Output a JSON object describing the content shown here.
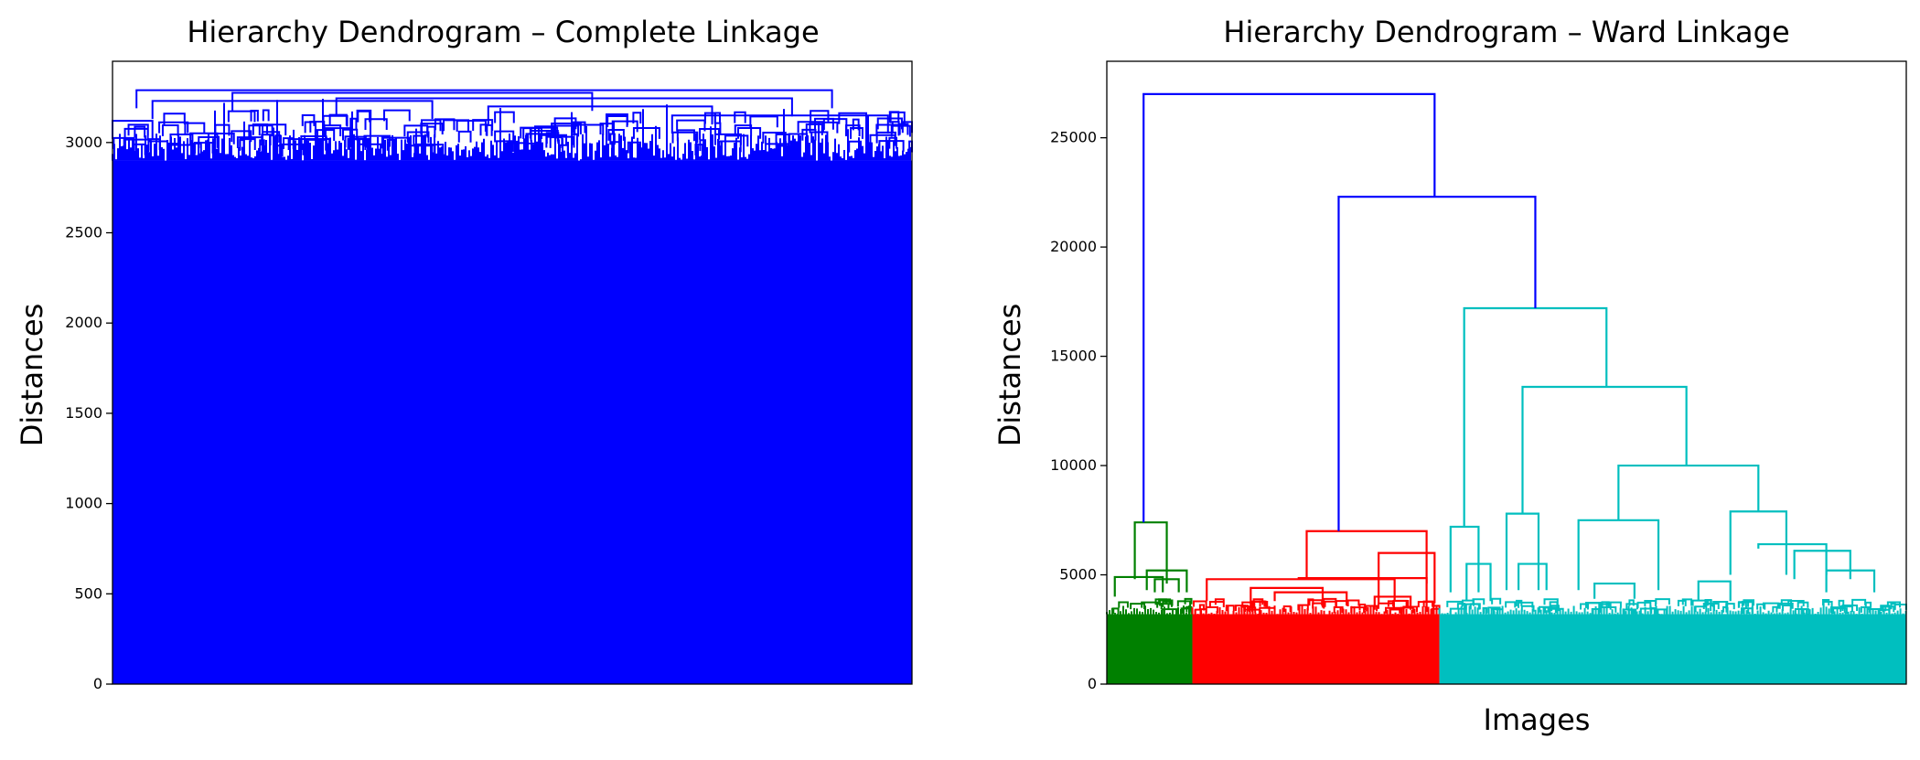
{
  "chart_data": [
    {
      "type": "dendrogram",
      "title": "Hierarchy Dendrogram – Complete Linkage",
      "xlabel": "",
      "ylabel": "Distances",
      "ylim": [
        0,
        3450
      ],
      "yticks": [
        0,
        500,
        1000,
        1500,
        2000,
        2500,
        3000
      ],
      "grid": false,
      "series": [
        {
          "color": "#0000ff",
          "values": []
        }
      ],
      "merges": [
        {
          "height": 3290,
          "color": "#0000ff"
        },
        {
          "height": 3275,
          "color": "#0000ff"
        },
        {
          "height": 3245,
          "color": "#0000ff"
        },
        {
          "height": 3230,
          "color": "#0000ff"
        },
        {
          "height": 3200,
          "color": "#0000ff"
        },
        {
          "height": 3150,
          "color": "#0000ff"
        },
        {
          "height": 3120,
          "color": "#0000ff"
        }
      ],
      "leaf_floor": 2900
    },
    {
      "type": "dendrogram",
      "title": "Hierarchy Dendrogram – Ward Linkage",
      "xlabel": "Images",
      "ylabel": "Distances",
      "ylim": [
        0,
        28500
      ],
      "yticks": [
        0,
        5000,
        10000,
        15000,
        20000,
        25000
      ],
      "grid": false,
      "series": [
        {
          "color": "#008000",
          "values": []
        },
        {
          "color": "#ff0000",
          "values": []
        },
        {
          "color": "#00bfbf",
          "values": []
        },
        {
          "color": "#0000ff",
          "values": []
        }
      ],
      "merges": [
        {
          "height": 27000,
          "color": "#0000ff"
        },
        {
          "height": 22300,
          "color": "#0000ff"
        },
        {
          "height": 17200,
          "color": "#00bfbf"
        },
        {
          "height": 13600,
          "color": "#00bfbf"
        },
        {
          "height": 10000,
          "color": "#00bfbf"
        },
        {
          "height": 7900,
          "color": "#00bfbf"
        },
        {
          "height": 7800,
          "color": "#00bfbf"
        },
        {
          "height": 7500,
          "color": "#00bfbf"
        },
        {
          "height": 7400,
          "color": "#008000"
        },
        {
          "height": 7000,
          "color": "#ff0000"
        },
        {
          "height": 6000,
          "color": "#ff0000"
        },
        {
          "height": 4850,
          "color": "#ff0000"
        }
      ],
      "leaf_floor": 3200
    }
  ]
}
